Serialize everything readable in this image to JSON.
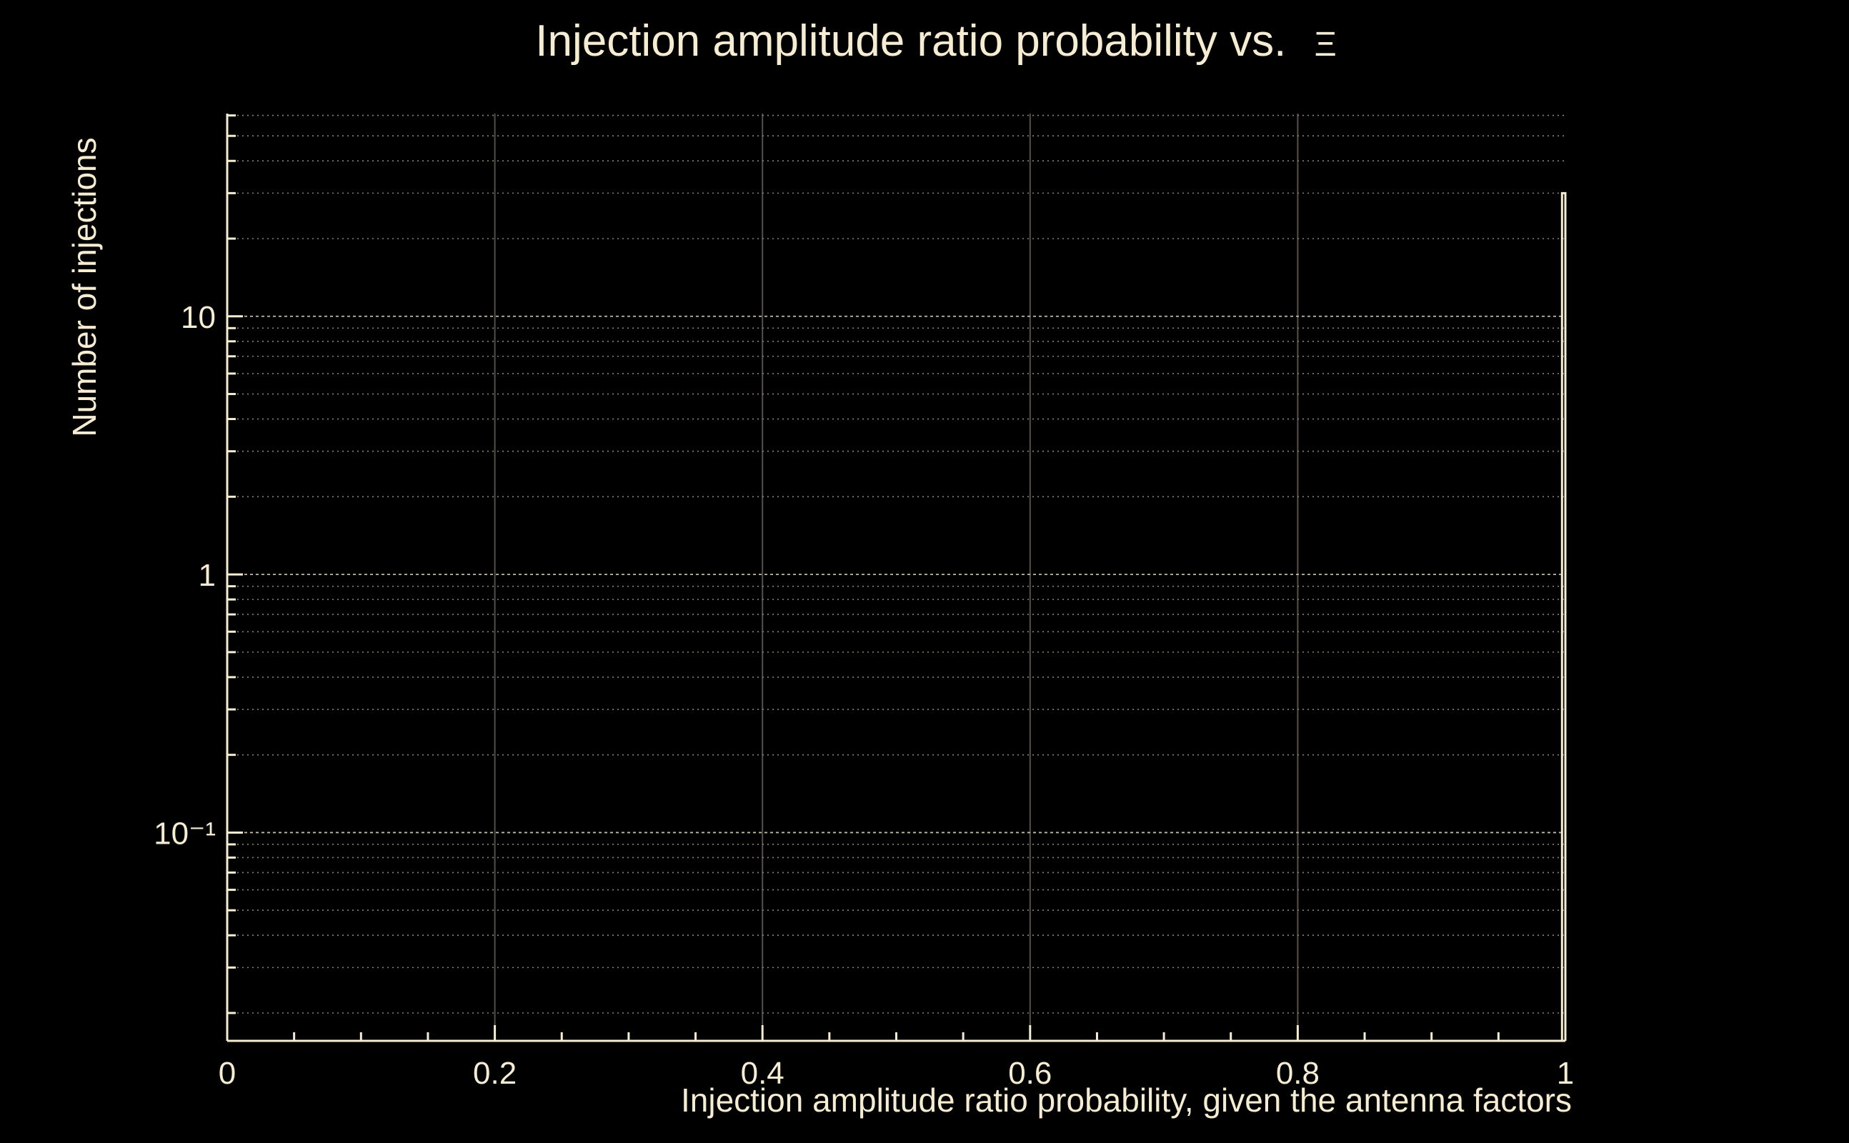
{
  "page": {
    "background": "#000000",
    "foreground": "#f5ecd2"
  },
  "chart_data": {
    "type": "bar",
    "subtype": "histogram-outline",
    "title": "Injection amplitude ratio probability vs.  Ξ",
    "title_prefix": "Injection amplitude ratio probability vs.",
    "title_symbol": "Ξ",
    "xlabel": "Injection amplitude ratio probability, given the antenna factors",
    "ylabel": "Number of injections",
    "x_range": [
      0,
      1
    ],
    "y_scale": "log10",
    "y_range": [
      0.0156,
      61
    ],
    "x_ticks": [
      0,
      0.2,
      0.4,
      0.6,
      0.8,
      1
    ],
    "x_tick_labels": [
      "0",
      "0.2",
      "0.4",
      "0.6",
      "0.8",
      "1"
    ],
    "x_minor_tick_step": 0.05,
    "y_ticks": [
      {
        "value": 10,
        "label": "10"
      },
      {
        "value": 1,
        "label": "1"
      },
      {
        "value": 0.1,
        "label": "10⁻¹"
      }
    ],
    "grid": true,
    "legend": false,
    "bars": [
      {
        "x_start": 0.9975,
        "x_end": 1.0,
        "value": 30
      }
    ],
    "colors": {
      "background": "#000000",
      "axis": "#f5ecd2",
      "text": "#f5ecd2",
      "histogram_line": "#f5ecd2",
      "grid_minor": "#8b8372",
      "grid_major": "#c2b9a4",
      "grid_vertical": "#55514a"
    }
  }
}
